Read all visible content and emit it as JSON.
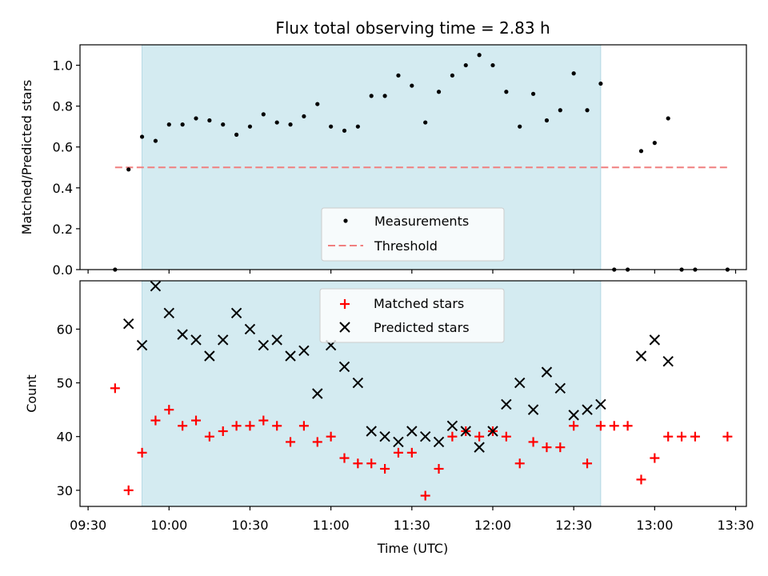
{
  "chart_data": [
    {
      "type": "scatter",
      "title": "Flux total observing time = 2.83 h",
      "xlabel": "",
      "ylabel": "Matched/Predicted stars",
      "ylim": [
        0,
        1.1
      ],
      "xlim": [
        "09:27",
        "13:34"
      ],
      "yticks": [
        "0.0",
        "0.2",
        "0.4",
        "0.6",
        "0.8",
        "1.0"
      ],
      "ytick_values": [
        0,
        0.2,
        0.4,
        0.6,
        0.8,
        1.0
      ],
      "observing_window": [
        "09:50",
        "12:40"
      ],
      "observing_window_color": "#d4ebf1",
      "legend": {
        "placement": "lower-center",
        "entries": [
          "Measurements",
          "Threshold"
        ]
      },
      "threshold": {
        "name": "Threshold",
        "y": 0.5,
        "x": [
          "09:40",
          "13:27"
        ],
        "color": "#f07f7f"
      },
      "series": [
        {
          "name": "Measurements",
          "color": "#000000",
          "marker": "dot",
          "x": [
            "09:40",
            "09:45",
            "09:50",
            "09:55",
            "10:00",
            "10:05",
            "10:10",
            "10:15",
            "10:20",
            "10:25",
            "10:30",
            "10:35",
            "10:40",
            "10:45",
            "10:50",
            "10:55",
            "11:00",
            "11:05",
            "11:10",
            "11:15",
            "11:20",
            "11:25",
            "11:30",
            "11:35",
            "11:40",
            "11:45",
            "11:50",
            "11:55",
            "12:00",
            "12:05",
            "12:10",
            "12:15",
            "12:20",
            "12:25",
            "12:30",
            "12:35",
            "12:40",
            "12:45",
            "12:50",
            "12:55",
            "13:00",
            "13:05",
            "13:10",
            "13:15",
            "13:27"
          ],
          "y": [
            0.0,
            0.49,
            0.65,
            0.63,
            0.71,
            0.71,
            0.74,
            0.73,
            0.71,
            0.66,
            0.7,
            0.76,
            0.72,
            0.71,
            0.75,
            0.81,
            0.7,
            0.68,
            0.7,
            0.85,
            0.85,
            0.95,
            0.9,
            0.72,
            0.87,
            0.95,
            1.0,
            1.05,
            1.0,
            0.87,
            0.7,
            0.86,
            0.73,
            0.78,
            0.96,
            0.78,
            0.91,
            0.0,
            0.0,
            0.58,
            0.62,
            0.74,
            0.0,
            0.0,
            0.0
          ]
        }
      ]
    },
    {
      "type": "scatter",
      "title": "",
      "xlabel": "Time (UTC)",
      "ylabel": "Count",
      "ylim": [
        27,
        69
      ],
      "xlim": [
        "09:27",
        "13:34"
      ],
      "yticks": [
        "30",
        "40",
        "50",
        "60"
      ],
      "ytick_values": [
        30,
        40,
        50,
        60
      ],
      "xticks": [
        "09:30",
        "10:00",
        "10:30",
        "11:00",
        "11:30",
        "12:00",
        "12:30",
        "13:00",
        "13:30"
      ],
      "observing_window": [
        "09:50",
        "12:40"
      ],
      "observing_window_color": "#d4ebf1",
      "legend": {
        "placement": "upper-center",
        "entries": [
          "Matched stars",
          "Predicted stars"
        ]
      },
      "series": [
        {
          "name": "Matched stars",
          "color": "#ff0000",
          "marker": "plus",
          "x": [
            "09:40",
            "09:45",
            "09:50",
            "09:55",
            "10:00",
            "10:05",
            "10:10",
            "10:15",
            "10:20",
            "10:25",
            "10:30",
            "10:35",
            "10:40",
            "10:45",
            "10:50",
            "10:55",
            "11:00",
            "11:05",
            "11:10",
            "11:15",
            "11:20",
            "11:25",
            "11:30",
            "11:35",
            "11:40",
            "11:45",
            "11:50",
            "11:55",
            "12:00",
            "12:05",
            "12:10",
            "12:15",
            "12:20",
            "12:25",
            "12:30",
            "12:35",
            "12:40",
            "12:45",
            "12:50",
            "12:55",
            "13:00",
            "13:05",
            "13:10",
            "13:15",
            "13:27"
          ],
          "y": [
            49,
            30,
            37,
            43,
            45,
            42,
            43,
            40,
            41,
            42,
            42,
            43,
            42,
            39,
            42,
            39,
            40,
            36,
            35,
            35,
            34,
            37,
            37,
            29,
            34,
            40,
            41,
            40,
            41,
            40,
            35,
            39,
            38,
            38,
            42,
            35,
            42,
            42,
            42,
            32,
            36,
            40,
            40,
            40,
            40
          ]
        },
        {
          "name": "Predicted stars",
          "color": "#000000",
          "marker": "x",
          "x": [
            "09:45",
            "09:50",
            "09:55",
            "10:00",
            "10:05",
            "10:10",
            "10:15",
            "10:20",
            "10:25",
            "10:30",
            "10:35",
            "10:40",
            "10:45",
            "10:50",
            "10:55",
            "11:00",
            "11:05",
            "11:10",
            "11:15",
            "11:20",
            "11:25",
            "11:30",
            "11:35",
            "11:40",
            "11:45",
            "11:50",
            "11:55",
            "12:00",
            "12:05",
            "12:10",
            "12:15",
            "12:20",
            "12:25",
            "12:30",
            "12:35",
            "12:40",
            "12:55",
            "13:00",
            "13:05"
          ],
          "y": [
            61,
            57,
            68,
            63,
            59,
            58,
            55,
            58,
            63,
            60,
            57,
            58,
            55,
            56,
            48,
            57,
            53,
            50,
            41,
            40,
            39,
            41,
            40,
            39,
            42,
            41,
            38,
            41,
            46,
            50,
            45,
            52,
            49,
            44,
            45,
            46,
            55,
            58,
            54
          ]
        }
      ]
    }
  ]
}
